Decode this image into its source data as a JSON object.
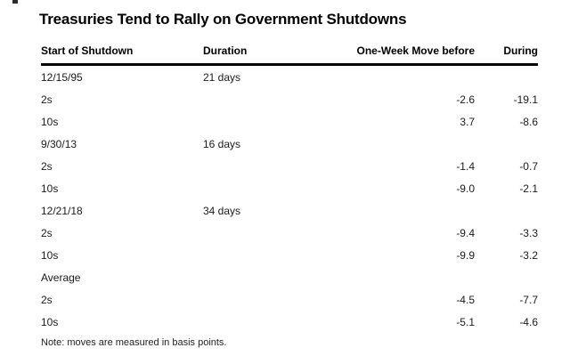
{
  "title": "Treasuries Tend to Rally on Government Shutdowns",
  "chart_data": {
    "type": "table",
    "title": "Treasuries Tend to Rally on Government Shutdowns",
    "columns": [
      "Start of Shutdown",
      "Duration",
      "One-Week Move before",
      "During"
    ],
    "rows": [
      [
        "12/15/95",
        "21 days",
        "",
        ""
      ],
      [
        "2s",
        "",
        "-2.6",
        "-19.1"
      ],
      [
        "10s",
        "",
        "3.7",
        "-8.6"
      ],
      [
        "9/30/13",
        "16 days",
        "",
        ""
      ],
      [
        "2s",
        "",
        "-1.4",
        "-0.7"
      ],
      [
        "10s",
        "",
        "-9.0",
        "-2.1"
      ],
      [
        "12/21/18",
        "34 days",
        "",
        ""
      ],
      [
        "2s",
        "",
        "-9.4",
        "-3.3"
      ],
      [
        "10s",
        "",
        "-9.9",
        "-3.2"
      ],
      [
        "Average",
        "",
        "",
        ""
      ],
      [
        "2s",
        "",
        "-4.5",
        "-7.7"
      ],
      [
        "10s",
        "",
        "-5.1",
        "-4.6"
      ]
    ],
    "note": "Note: moves are measured in basis points.",
    "units": "basis points",
    "layout_hints": {
      "numeric_columns_right_aligned": true,
      "header_rule": "3px solid black",
      "row_grid": "off"
    }
  },
  "colors": {
    "background": "#ffffff",
    "text": "#111111",
    "title_text": "#000000",
    "header_rule": "#000000"
  }
}
